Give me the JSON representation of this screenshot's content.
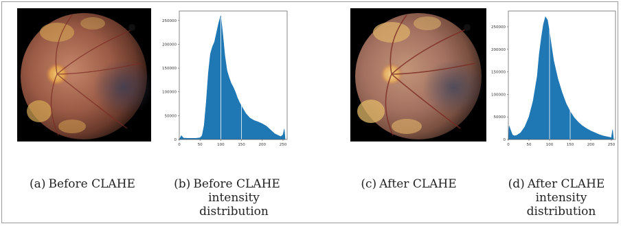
{
  "captions": {
    "a": {
      "label": "(a)",
      "lines": [
        "Before CLAHE"
      ]
    },
    "b": {
      "label": "(b)",
      "lines": [
        "Before CLAHE",
        "intensity",
        "distribution"
      ]
    },
    "c": {
      "label": "(c)",
      "lines": [
        "After CLAHE"
      ]
    },
    "d": {
      "label": "(d)",
      "lines": [
        "After CLAHE",
        "intensity",
        "distribution"
      ]
    }
  },
  "images": {
    "before": {
      "description_icon": "retinal-fundus-image"
    },
    "after": {
      "description_icon": "retinal-fundus-image-enhanced"
    }
  },
  "chart_data": [
    {
      "type": "area",
      "xlim": [
        0,
        260
      ],
      "ylim": [
        0,
        270000
      ],
      "xticks": [
        0,
        50,
        100,
        150,
        200,
        250
      ],
      "yticks": [
        0,
        50000,
        100000,
        150000,
        200000,
        250000
      ],
      "ytick_labels": [
        "0",
        "50000",
        "100000",
        "150000",
        "200000",
        "250000"
      ],
      "color": "#1f77b4",
      "x": [
        0,
        5,
        10,
        20,
        30,
        40,
        50,
        55,
        60,
        65,
        70,
        75,
        80,
        85,
        90,
        95,
        100,
        105,
        110,
        115,
        120,
        125,
        130,
        135,
        140,
        145,
        150,
        160,
        170,
        180,
        190,
        200,
        210,
        220,
        230,
        240,
        245,
        250,
        253,
        255
      ],
      "y": [
        0,
        8000,
        3000,
        2500,
        2500,
        2500,
        3500,
        8000,
        30000,
        80000,
        140000,
        180000,
        195000,
        205000,
        225000,
        245000,
        260000,
        220000,
        175000,
        145000,
        130000,
        118000,
        110000,
        100000,
        88000,
        78000,
        70000,
        55000,
        45000,
        40000,
        37000,
        33000,
        28000,
        20000,
        12000,
        8000,
        6000,
        10000,
        22000,
        3000
      ]
    },
    {
      "type": "area",
      "xlim": [
        0,
        260
      ],
      "ylim": [
        0,
        285000
      ],
      "xticks": [
        0,
        50,
        100,
        150,
        200,
        250
      ],
      "yticks": [
        0,
        50000,
        100000,
        150000,
        200000,
        250000
      ],
      "ytick_labels": [
        "0",
        "50000",
        "100000",
        "150000",
        "200000",
        "250000"
      ],
      "color": "#1f77b4",
      "x": [
        0,
        2,
        5,
        10,
        15,
        20,
        30,
        40,
        50,
        60,
        70,
        75,
        80,
        85,
        90,
        95,
        100,
        105,
        110,
        120,
        130,
        140,
        150,
        160,
        170,
        180,
        190,
        200,
        210,
        220,
        230,
        240,
        245,
        250,
        253,
        255
      ],
      "y": [
        0,
        30000,
        22000,
        10000,
        8000,
        9000,
        15000,
        28000,
        50000,
        85000,
        140000,
        190000,
        225000,
        255000,
        272000,
        265000,
        238000,
        205000,
        175000,
        135000,
        105000,
        80000,
        62000,
        48000,
        38000,
        30000,
        24000,
        19000,
        15000,
        11000,
        8000,
        6000,
        5000,
        4000,
        22000,
        3000
      ]
    }
  ]
}
